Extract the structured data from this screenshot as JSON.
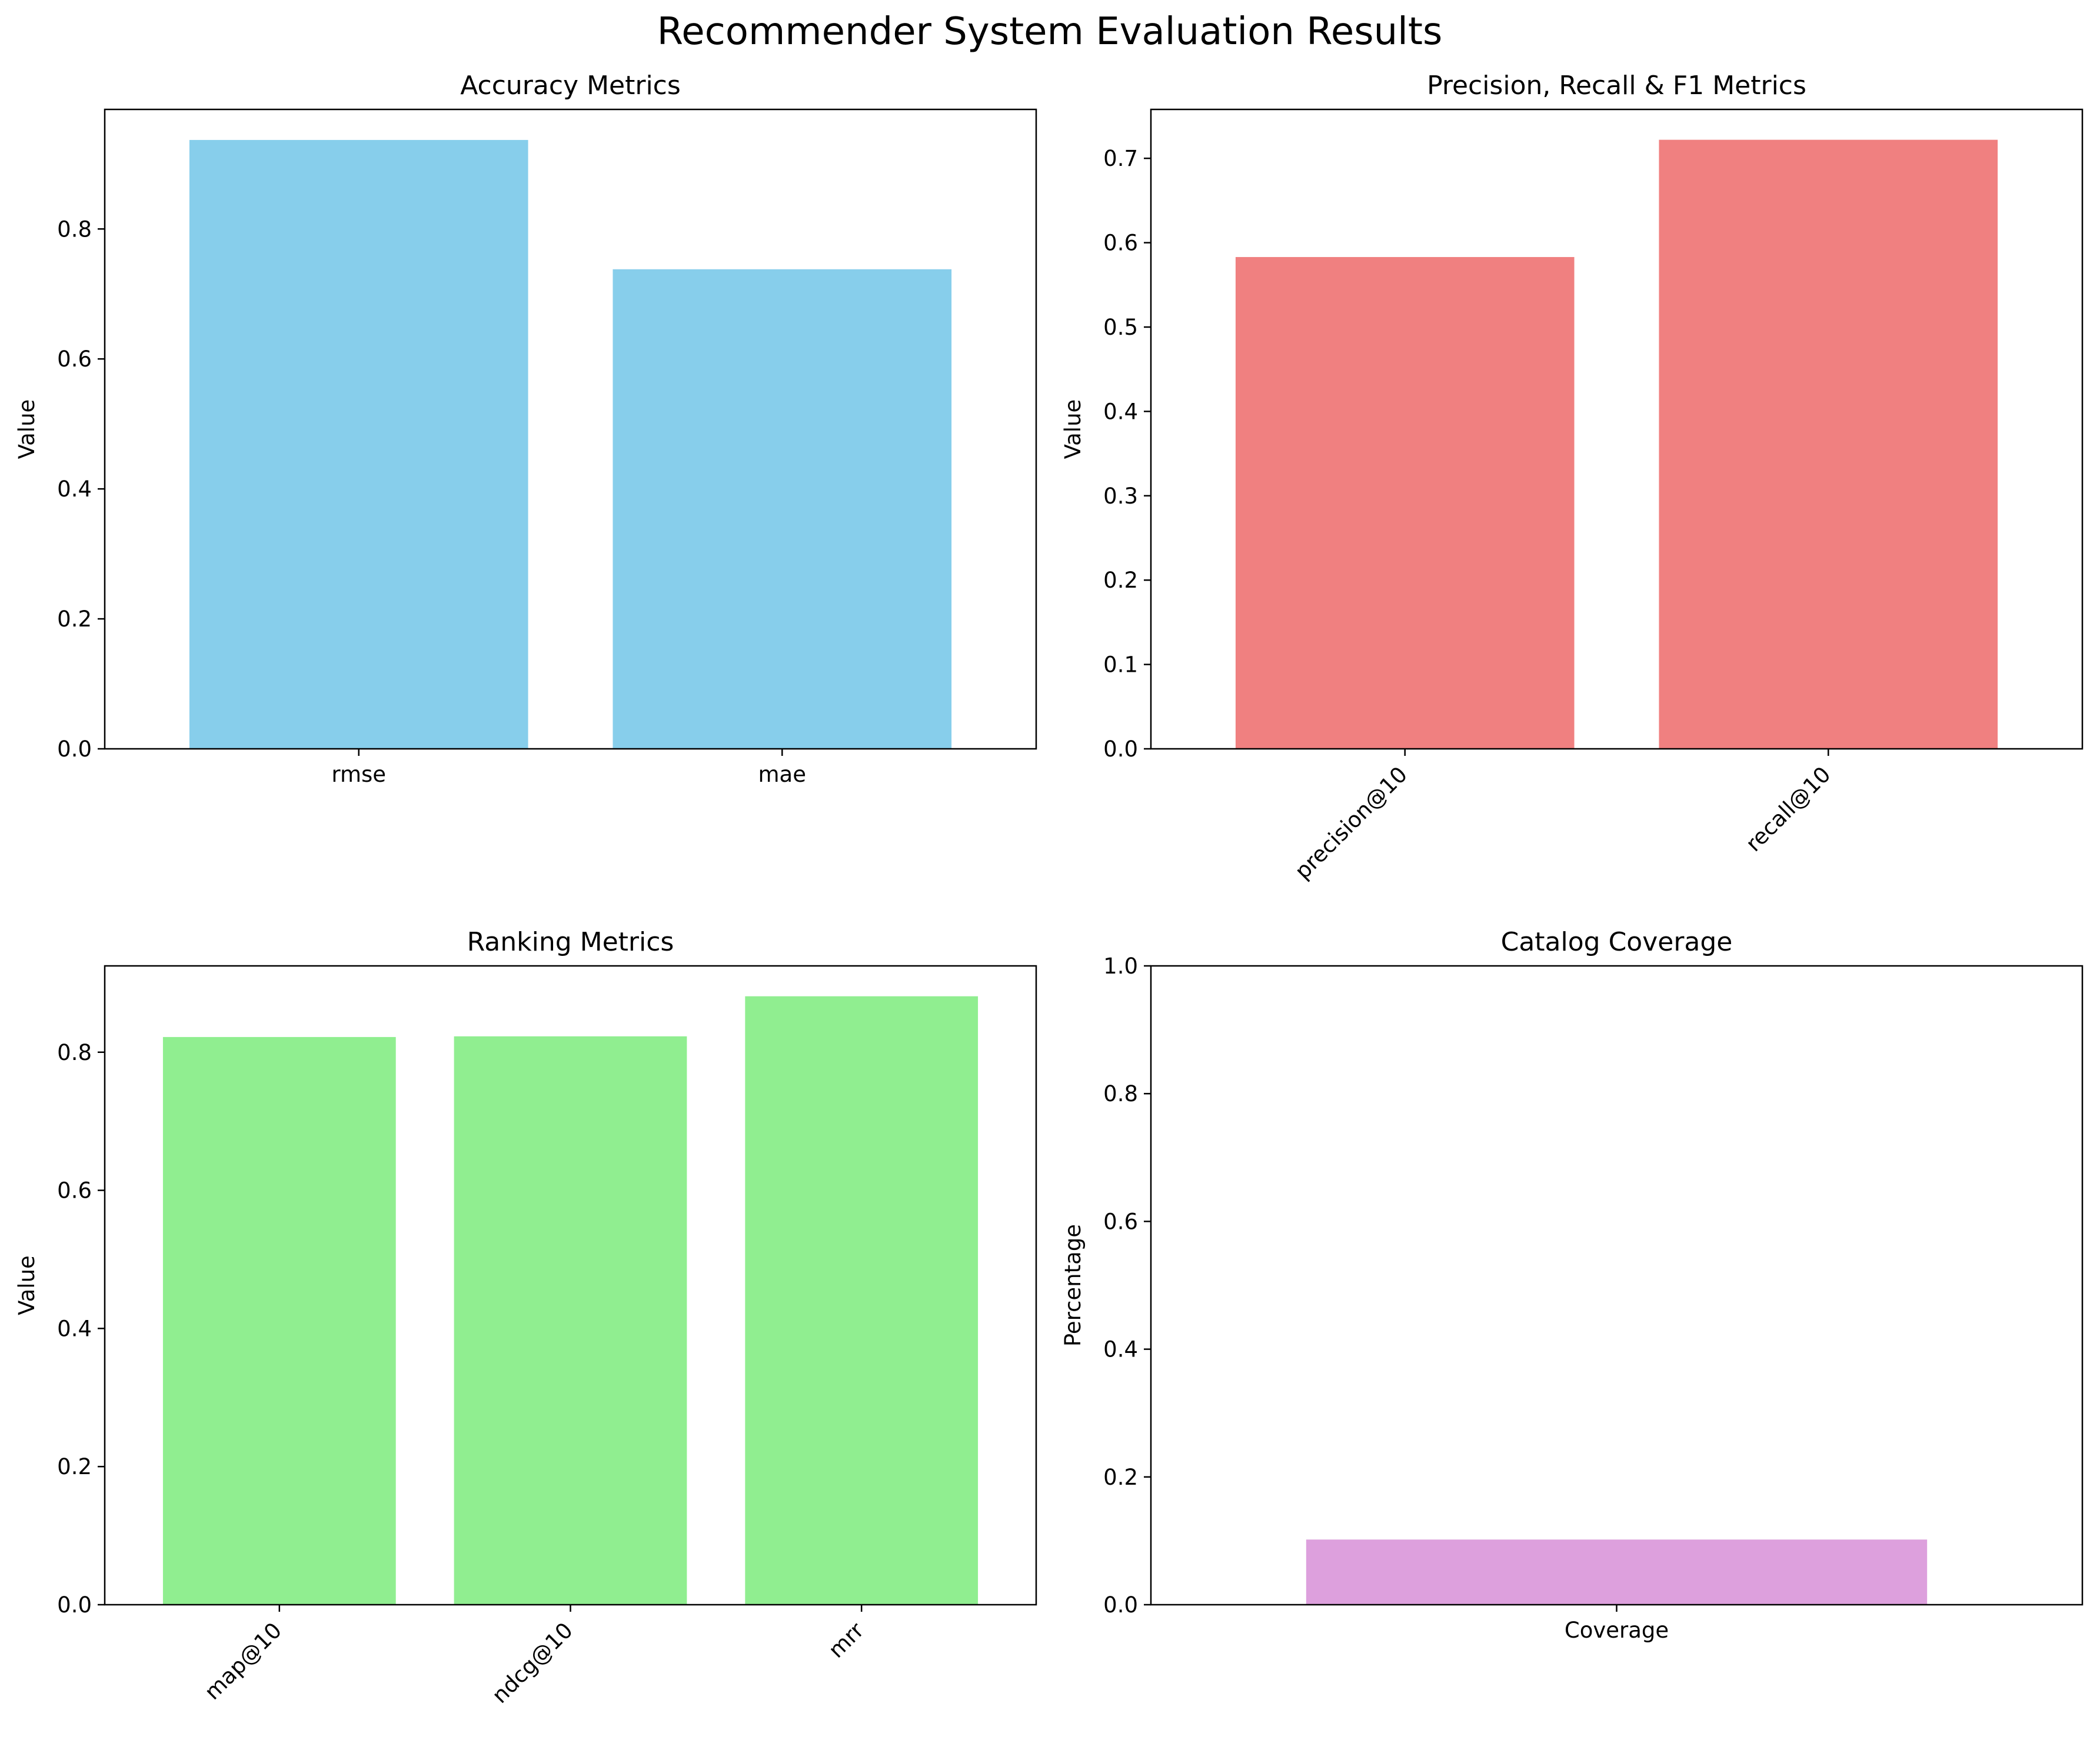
{
  "figure": {
    "title": "Recommender System Evaluation Results"
  },
  "chart_data": [
    {
      "type": "bar",
      "title": "Accuracy Metrics",
      "xlabel": "",
      "ylabel": "Value",
      "categories": [
        "rmse",
        "mae"
      ],
      "values": [
        0.937,
        0.738
      ],
      "ylim": [
        0,
        0.984
      ],
      "yticks": [
        0.0,
        0.2,
        0.4,
        0.6,
        0.8
      ],
      "ytick_labels": [
        "0.0",
        "0.2",
        "0.4",
        "0.6",
        "0.8"
      ],
      "color": "#87CEEB",
      "xtick_rotation": 0,
      "grid": false
    },
    {
      "type": "bar",
      "title": "Precision, Recall & F1 Metrics",
      "xlabel": "",
      "ylabel": "Value",
      "categories": [
        "precision@10",
        "recall@10"
      ],
      "values": [
        0.583,
        0.722
      ],
      "ylim": [
        0,
        0.758
      ],
      "yticks": [
        0.0,
        0.1,
        0.2,
        0.3,
        0.4,
        0.5,
        0.6,
        0.7
      ],
      "ytick_labels": [
        "0.0",
        "0.1",
        "0.2",
        "0.3",
        "0.4",
        "0.5",
        "0.6",
        "0.7"
      ],
      "color": "#F08080",
      "xtick_rotation": -45,
      "grid": false
    },
    {
      "type": "bar",
      "title": "Ranking Metrics",
      "xlabel": "",
      "ylabel": "Value",
      "categories": [
        "map@10",
        "ndcg@10",
        "mrr"
      ],
      "values": [
        0.822,
        0.823,
        0.881
      ],
      "ylim": [
        0,
        0.925
      ],
      "yticks": [
        0.0,
        0.2,
        0.4,
        0.6,
        0.8
      ],
      "ytick_labels": [
        "0.0",
        "0.2",
        "0.4",
        "0.6",
        "0.8"
      ],
      "color": "#90EE90",
      "xtick_rotation": -45,
      "grid": false
    },
    {
      "type": "bar",
      "title": "Catalog Coverage",
      "xlabel": "",
      "ylabel": "Percentage",
      "categories": [
        "Coverage"
      ],
      "values": [
        0.102
      ],
      "ylim": [
        0,
        1.0
      ],
      "yticks": [
        0.0,
        0.2,
        0.4,
        0.6,
        0.8,
        1.0
      ],
      "ytick_labels": [
        "0.0",
        "0.2",
        "0.4",
        "0.6",
        "0.8",
        "1.0"
      ],
      "color": "#DDA0DD",
      "xtick_rotation": 0,
      "grid": false
    }
  ]
}
